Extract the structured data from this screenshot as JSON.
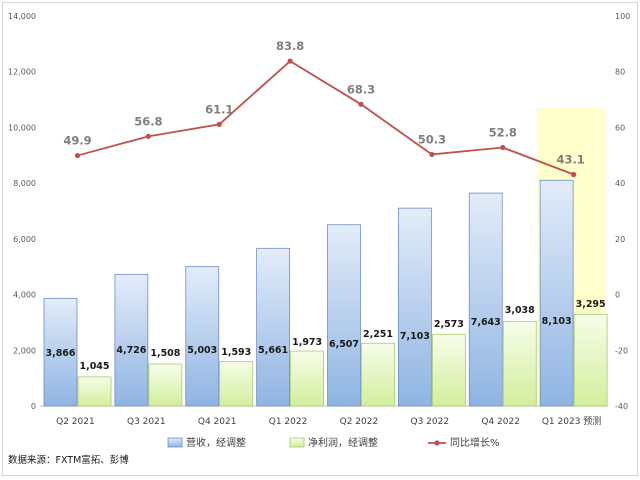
{
  "source": "数据来源：FXTM富拓、彭博",
  "chart_data": {
    "type": "bar",
    "categories": [
      "Q2 2021",
      "Q3 2021",
      "Q4 2021",
      "Q1 2022",
      "Q2 2022",
      "Q3 2022",
      "Q4 2022",
      "Q1 2023 预测"
    ],
    "series": [
      {
        "name": "营收，经调整",
        "type": "bar",
        "axis": "left",
        "values": [
          3866,
          4726,
          5003,
          5661,
          6507,
          7103,
          7643,
          8103
        ],
        "labels": [
          "3,866",
          "4,726",
          "5,003",
          "5,661",
          "6,507",
          "7,103",
          "7,643",
          "8,103"
        ],
        "color": "#8fb4e3"
      },
      {
        "name": "净利润，经调整",
        "type": "bar",
        "axis": "left",
        "values": [
          1045,
          1508,
          1593,
          1973,
          2251,
          2573,
          3038,
          3295
        ],
        "labels": [
          "1,045",
          "1,508",
          "1,593",
          "1,973",
          "2,251",
          "2,573",
          "3,038",
          "3,295"
        ],
        "color": "#d7f0a8"
      },
      {
        "name": "同比增长%",
        "type": "line",
        "axis": "right",
        "values": [
          49.9,
          56.8,
          61.1,
          83.8,
          68.3,
          50.3,
          52.8,
          43.1
        ],
        "labels": [
          "49.9",
          "56.8",
          "61.1",
          "83.8",
          "68.3",
          "50.3",
          "52.8",
          "43.1"
        ],
        "color": "#c0504d"
      }
    ],
    "y_left": {
      "min": 0,
      "max": 14000,
      "ticks": [
        "0",
        "2,000",
        "4,000",
        "6,000",
        "8,000",
        "10,000",
        "12,000",
        "14,000"
      ],
      "tick_values": [
        0,
        2000,
        4000,
        6000,
        8000,
        10000,
        12000,
        14000
      ]
    },
    "y_right": {
      "min": -40,
      "max": 100,
      "ticks": [
        "-40",
        "-20",
        "0",
        "20",
        "40",
        "60",
        "80",
        "100"
      ],
      "tick_values": [
        -40,
        -20,
        0,
        20,
        40,
        60,
        80,
        100
      ]
    },
    "forecast_highlight": {
      "category": "Q1 2023 预测",
      "color": "#ffffcc"
    },
    "grid": false,
    "legend": "bottom"
  }
}
